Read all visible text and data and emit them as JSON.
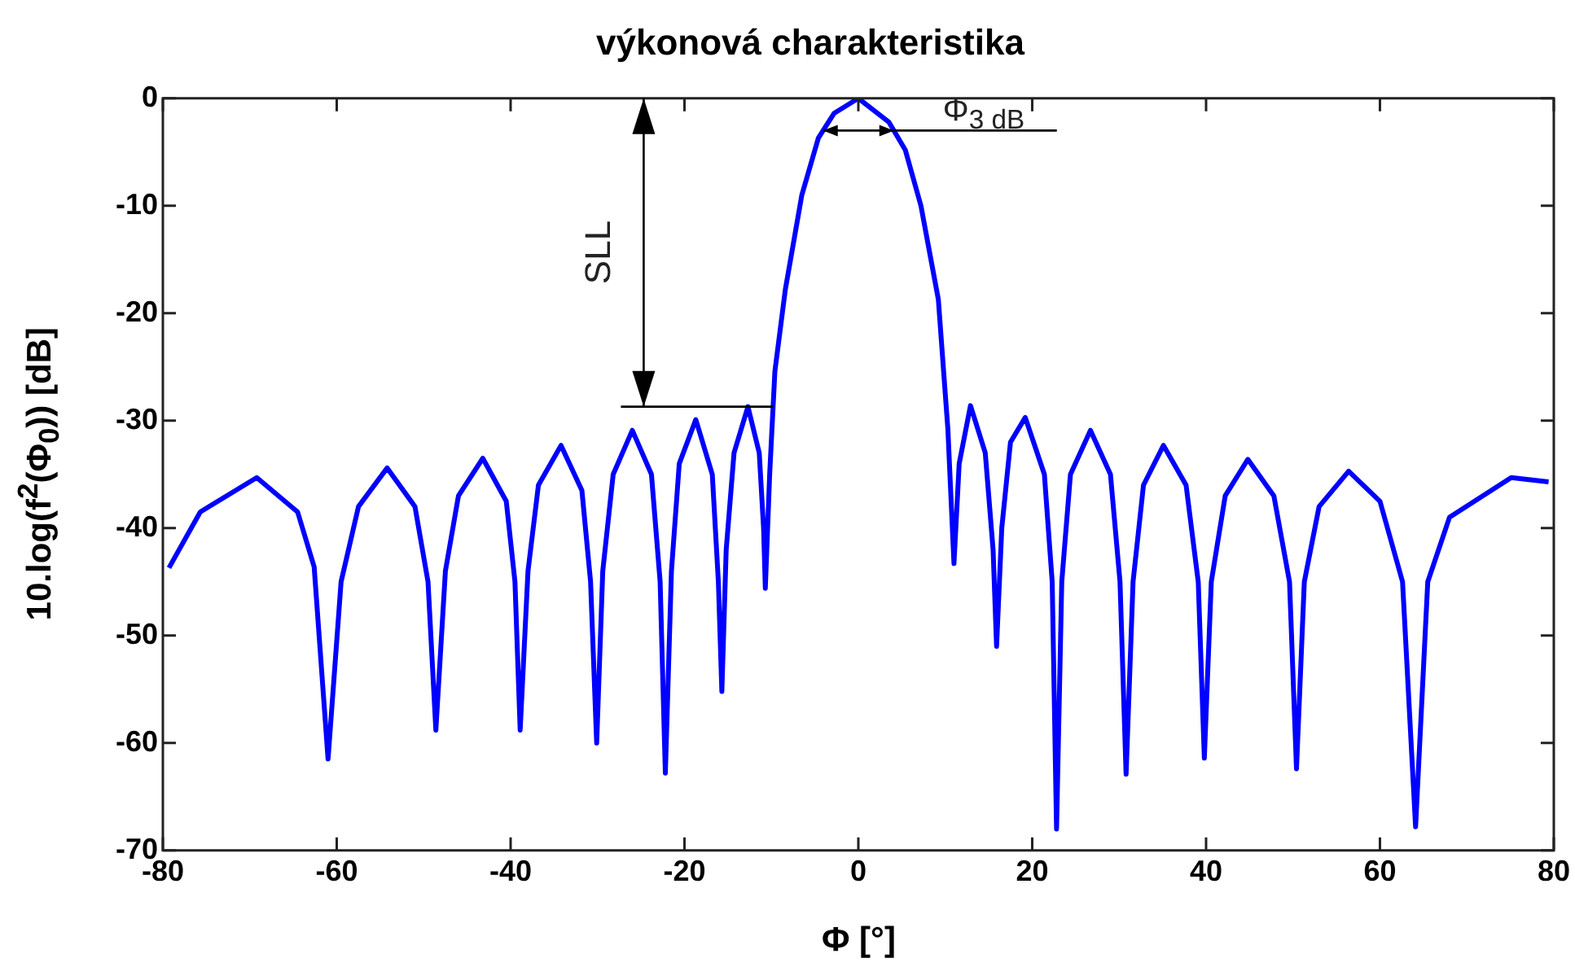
{
  "chart_data": {
    "type": "line",
    "title": "výkonová charakteristika",
    "xlabel": "Φ [°]",
    "ylabel": "10.log(f$^{2}$(Φ$_{0}$)) [dB]",
    "xlim": [
      -80,
      80
    ],
    "xticks": [
      -80,
      -60,
      -40,
      -20,
      0,
      20,
      40,
      60,
      80
    ],
    "ylim": [
      -70,
      0
    ],
    "yticks": [
      -70,
      -60,
      -50,
      -40,
      -30,
      -20,
      -10,
      0
    ],
    "grid": false,
    "annotations": [
      "SLL",
      {
        "text": "Φ$_{3 dB}$",
        "x": 4.1,
        "y": -3
      }
    ],
    "series": [
      {
        "color": "#0000ff",
        "x": [
          -79.3,
          -75.7,
          -69.2,
          -64.5,
          -62.6,
          -61,
          -59.5,
          -57.5,
          -54.2,
          -51,
          -49.5,
          -48.6,
          -47.5,
          -46,
          -43.2,
          -40.5,
          -39.5,
          -38.9,
          -38,
          -36.8,
          -34.2,
          -31.8,
          -30.8,
          -30.1,
          -29.4,
          -28.2,
          -26,
          -23.8,
          -22.8,
          -22.2,
          -21.5,
          -20.6,
          -18.7,
          -16.8,
          -16.1,
          -15.7,
          -15.2,
          -14.3,
          -12.7,
          -11.4,
          -10.9,
          -10.7,
          -10.2,
          -9.6,
          -8.4,
          -6.5,
          -4.6,
          -2.8,
          0,
          3.5,
          5.4,
          7.2,
          9.2,
          10.3,
          11,
          11.6,
          12.9,
          14.6,
          15.5,
          15.9,
          16.5,
          17.5,
          19.2,
          21.4,
          22.3,
          22.8,
          23.4,
          24.4,
          26.7,
          29,
          30.1,
          30.8,
          31.6,
          32.8,
          35.1,
          37.7,
          39.1,
          39.8,
          40.6,
          42.2,
          44.8,
          47.8,
          49.6,
          50.4,
          51.3,
          53,
          56.4,
          60,
          62.6,
          64.1,
          65.5,
          68,
          75.1,
          79.4
        ],
        "values": [
          -43.7,
          -38.5,
          -35.3,
          -38.5,
          -43.6,
          -61.5,
          -45,
          -38,
          -34.4,
          -38,
          -45,
          -58.8,
          -44,
          -37,
          -33.5,
          -37.5,
          -45,
          -58.8,
          -44,
          -36,
          -32.3,
          -36.5,
          -45,
          -60,
          -44,
          -35,
          -30.9,
          -35,
          -45,
          -62.8,
          -44,
          -34,
          -29.9,
          -35,
          -45,
          -55.2,
          -42,
          -33,
          -28.7,
          -33,
          -40,
          -45.6,
          -35,
          -25.4,
          -17.8,
          -9,
          -3.7,
          -1.4,
          0,
          -2.2,
          -4.8,
          -10,
          -18.7,
          -30.8,
          -43.3,
          -34,
          -28.6,
          -33,
          -42,
          -51,
          -40,
          -32,
          -29.7,
          -35,
          -45,
          -68,
          -45,
          -35,
          -30.9,
          -35,
          -45,
          -62.9,
          -45,
          -36,
          -32.3,
          -36,
          -45,
          -61.4,
          -45,
          -37,
          -33.6,
          -37,
          -45,
          -62.4,
          -45,
          -38,
          -34.7,
          -37.5,
          -45,
          -67.8,
          -45,
          -39,
          -35.3,
          -35.7
        ]
      }
    ]
  }
}
